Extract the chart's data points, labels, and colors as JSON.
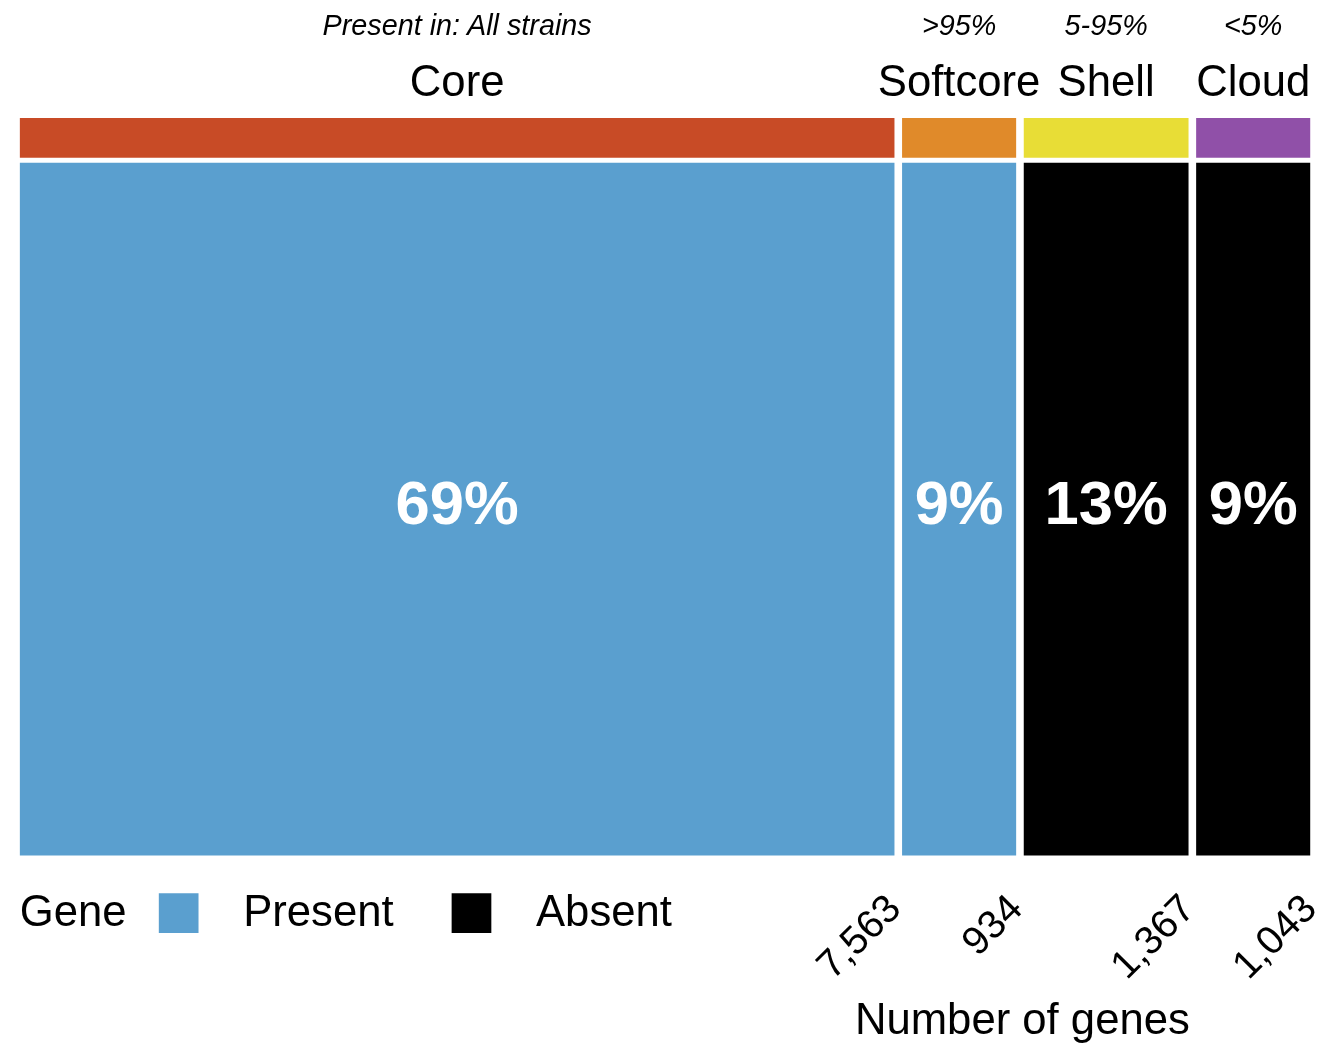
{
  "chart_data": {
    "type": "other",
    "xlabel": "Number of genes",
    "legend_title": "Gene",
    "legend": "bottom left",
    "categories": [
      "Core",
      "Softcore",
      "Shell",
      "Cloud"
    ],
    "totals": [
      "7,563",
      "934",
      "1,367",
      "1,043"
    ],
    "colors": [
      "#c84b26",
      "#e08a2a",
      "#e8dd36",
      "#9050a8"
    ],
    "series": [
      {
        "name": "Present",
        "color": "#5a9fcf",
        "values": [
          69,
          9,
          null,
          null
        ],
        "value_labels": [
          "69%",
          "9%",
          null,
          null
        ]
      },
      {
        "name": "Absent",
        "color": "#000000",
        "values": [
          null,
          null,
          13,
          9
        ],
        "value_labels": [
          null,
          null,
          "13%",
          "9%"
        ]
      }
    ],
    "annotations": [
      {
        "text": "Present in: All strains",
        "x": "Core"
      },
      {
        "text": ">95%",
        "x": "Softcore"
      },
      {
        "text": "5-95%",
        "x": "Shell"
      },
      {
        "text": "<5%",
        "x": "Cloud"
      }
    ]
  }
}
